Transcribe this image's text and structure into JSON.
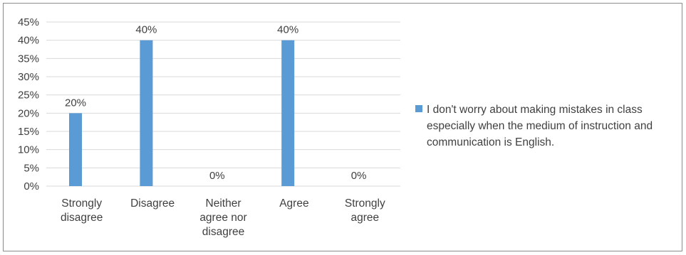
{
  "chart_data": {
    "type": "bar",
    "categories": [
      [
        "Strongly",
        "disagree"
      ],
      [
        "Disagree"
      ],
      [
        "Neither",
        "agree nor",
        "disagree"
      ],
      [
        "Agree"
      ],
      [
        "Strongly",
        "agree"
      ]
    ],
    "series": [
      {
        "name": "I don't worry about making mistakes in class especially when the medium of instruction and communication is English.",
        "values": [
          20,
          40,
          0,
          40,
          0
        ],
        "data_labels": [
          "20%",
          "40%",
          "0%",
          "40%",
          "0%"
        ],
        "color": "#5b9bd5"
      }
    ],
    "y_ticks": [
      "0%",
      "5%",
      "10%",
      "15%",
      "20%",
      "25%",
      "30%",
      "35%",
      "40%",
      "45%"
    ],
    "ylim": [
      0,
      45
    ],
    "y_step": 5,
    "grid": true,
    "legend_position": "right"
  },
  "colors": {
    "gridline": "#d9d9d9",
    "text": "#404040",
    "border": "#8c8c8c"
  }
}
